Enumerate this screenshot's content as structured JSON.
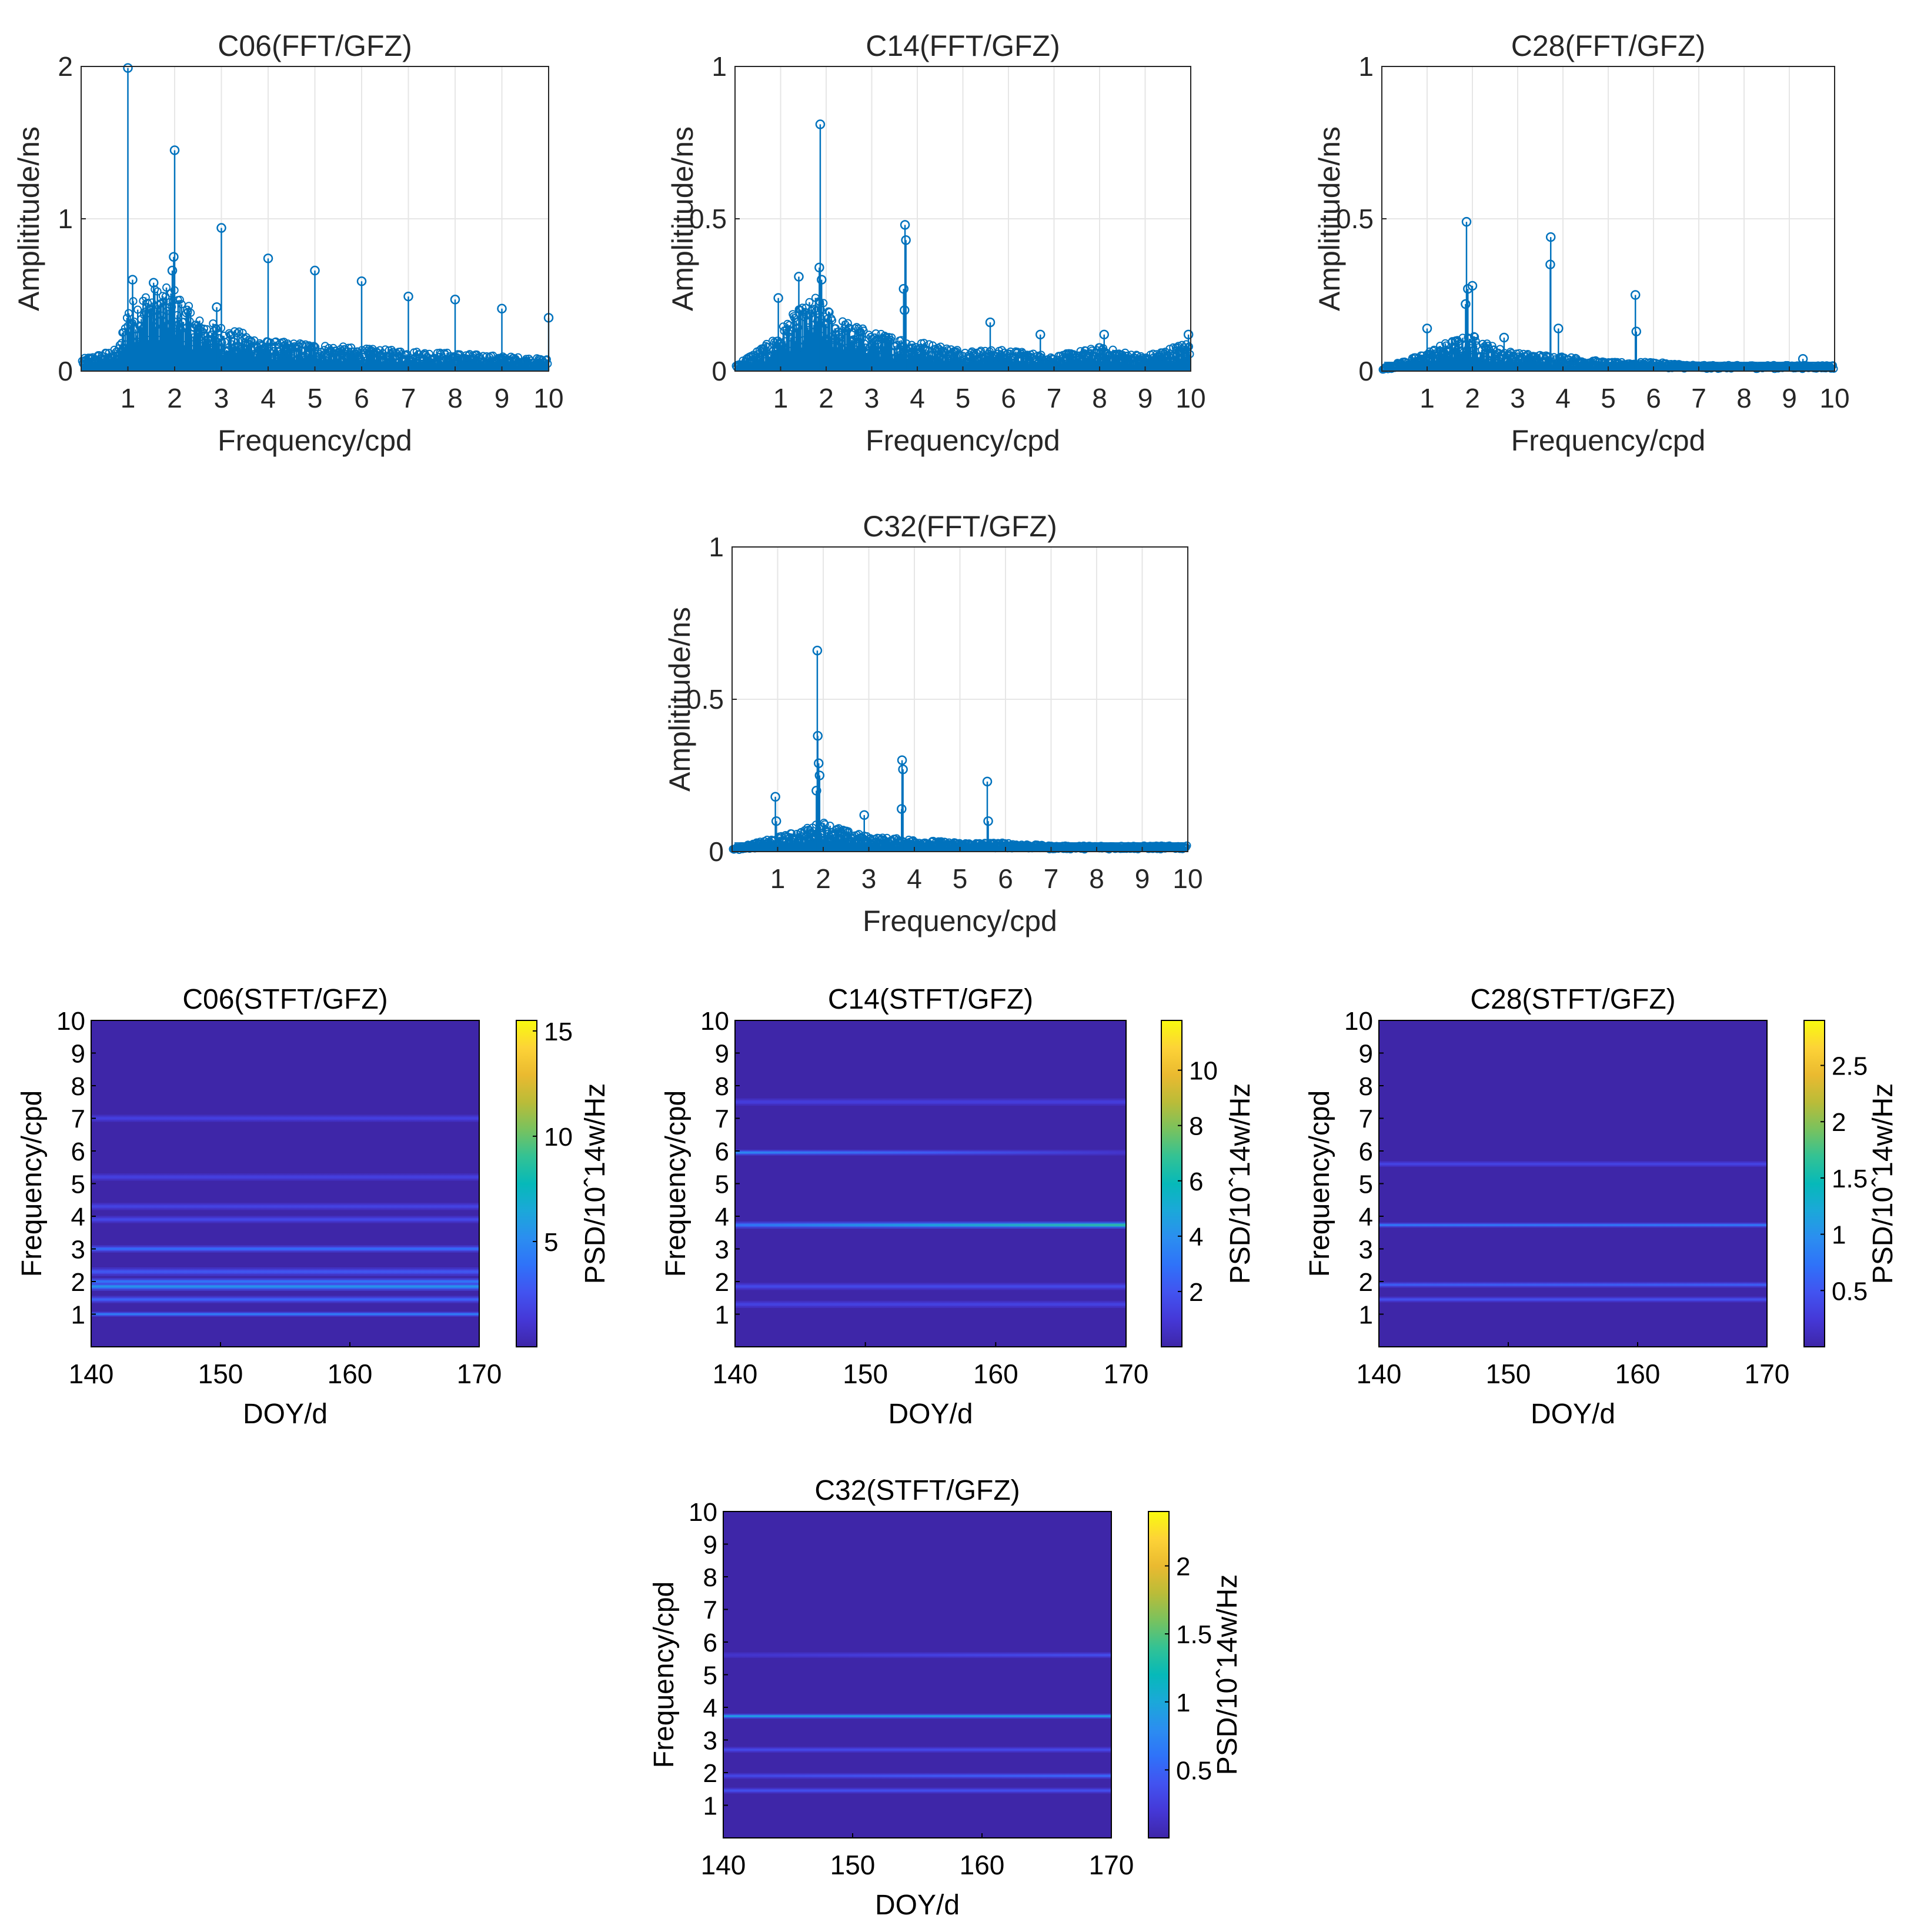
{
  "colors": {
    "stem": "#0072BD",
    "axis_fft": "#262626",
    "grid": "#e6e6e6",
    "heatmap_bg": "#3e26a8",
    "parula": [
      "#3e26a8",
      "#4538d7",
      "#4253f0",
      "#2f72f9",
      "#2b8ef0",
      "#1ba8d9",
      "#06b9b9",
      "#33c294",
      "#79c25e",
      "#bbbc38",
      "#eaba30",
      "#fdd337",
      "#f9fb0e"
    ]
  },
  "chart_data": [
    {
      "type": "stem",
      "title": "C06(FFT/GFZ)",
      "xlabel": "Frequency/cpd",
      "ylabel": "Amplititude/ns",
      "xlim": [
        0,
        10
      ],
      "ylim": [
        0,
        2
      ],
      "xticks": [
        1,
        2,
        3,
        4,
        5,
        6,
        7,
        8,
        9,
        10
      ],
      "yticks": [
        0,
        1,
        2
      ],
      "grid": true,
      "peaks": [
        {
          "f": 1.0,
          "a": 1.99
        },
        {
          "f": 2.0,
          "a": 1.45
        },
        {
          "f": 1.98,
          "a": 0.75
        },
        {
          "f": 1.95,
          "a": 0.66
        },
        {
          "f": 3.0,
          "a": 0.94
        },
        {
          "f": 4.0,
          "a": 0.74
        },
        {
          "f": 5.0,
          "a": 0.66
        },
        {
          "f": 6.0,
          "a": 0.59
        },
        {
          "f": 7.0,
          "a": 0.49
        },
        {
          "f": 8.0,
          "a": 0.47
        },
        {
          "f": 9.0,
          "a": 0.41
        },
        {
          "f": 10.0,
          "a": 0.35
        },
        {
          "f": 1.1,
          "a": 0.6
        },
        {
          "f": 1.55,
          "a": 0.58
        },
        {
          "f": 2.9,
          "a": 0.42
        }
      ],
      "noise_envelope": [
        [
          0,
          0.08
        ],
        [
          0.8,
          0.15
        ],
        [
          1.0,
          0.45
        ],
        [
          1.5,
          0.55
        ],
        [
          2.0,
          0.55
        ],
        [
          2.5,
          0.35
        ],
        [
          3.0,
          0.3
        ],
        [
          4.0,
          0.2
        ],
        [
          5.0,
          0.18
        ],
        [
          6.0,
          0.15
        ],
        [
          8.0,
          0.12
        ],
        [
          10.0,
          0.08
        ]
      ]
    },
    {
      "type": "stem",
      "title": "C14(FFT/GFZ)",
      "xlabel": "Frequency/cpd",
      "ylabel": "Amplititude/ns",
      "xlim": [
        0,
        10
      ],
      "ylim": [
        0,
        1
      ],
      "xticks": [
        1,
        2,
        3,
        4,
        5,
        6,
        7,
        8,
        9,
        10
      ],
      "yticks": [
        0,
        0.5,
        1
      ],
      "grid": true,
      "peaks": [
        {
          "f": 1.87,
          "a": 0.81
        },
        {
          "f": 1.85,
          "a": 0.34
        },
        {
          "f": 1.9,
          "a": 0.3
        },
        {
          "f": 3.73,
          "a": 0.48
        },
        {
          "f": 3.75,
          "a": 0.43
        },
        {
          "f": 3.7,
          "a": 0.27
        },
        {
          "f": 3.72,
          "a": 0.2
        },
        {
          "f": 0.95,
          "a": 0.24
        },
        {
          "f": 1.4,
          "a": 0.31
        },
        {
          "f": 5.6,
          "a": 0.16
        },
        {
          "f": 6.7,
          "a": 0.12
        },
        {
          "f": 8.1,
          "a": 0.12
        },
        {
          "f": 9.95,
          "a": 0.12
        }
      ],
      "noise_envelope": [
        [
          0,
          0.02
        ],
        [
          0.8,
          0.1
        ],
        [
          1.2,
          0.18
        ],
        [
          1.8,
          0.25
        ],
        [
          2.2,
          0.18
        ],
        [
          3.0,
          0.13
        ],
        [
          4.0,
          0.1
        ],
        [
          5.0,
          0.07
        ],
        [
          6.0,
          0.07
        ],
        [
          7.0,
          0.05
        ],
        [
          8.0,
          0.08
        ],
        [
          9.0,
          0.05
        ],
        [
          10.0,
          0.1
        ]
      ]
    },
    {
      "type": "stem",
      "title": "C28(FFT/GFZ)",
      "xlabel": "Frequency/cpd",
      "ylabel": "Amplititude/ns",
      "xlim": [
        0,
        10
      ],
      "ylim": [
        0,
        1
      ],
      "xticks": [
        1,
        2,
        3,
        4,
        5,
        6,
        7,
        8,
        9,
        10
      ],
      "yticks": [
        0,
        0.5,
        1
      ],
      "grid": true,
      "peaks": [
        {
          "f": 1.87,
          "a": 0.49
        },
        {
          "f": 1.9,
          "a": 0.27
        },
        {
          "f": 2.0,
          "a": 0.28
        },
        {
          "f": 1.85,
          "a": 0.22
        },
        {
          "f": 3.73,
          "a": 0.44
        },
        {
          "f": 3.72,
          "a": 0.35
        },
        {
          "f": 3.9,
          "a": 0.14
        },
        {
          "f": 5.6,
          "a": 0.25
        },
        {
          "f": 5.62,
          "a": 0.13
        },
        {
          "f": 1.0,
          "a": 0.14
        },
        {
          "f": 2.7,
          "a": 0.11
        },
        {
          "f": 9.3,
          "a": 0.04
        }
      ],
      "noise_envelope": [
        [
          0,
          0.01
        ],
        [
          0.8,
          0.05
        ],
        [
          1.5,
          0.1
        ],
        [
          2.0,
          0.12
        ],
        [
          2.5,
          0.08
        ],
        [
          3.0,
          0.06
        ],
        [
          4.0,
          0.05
        ],
        [
          5.0,
          0.03
        ],
        [
          6.0,
          0.03
        ],
        [
          7.0,
          0.02
        ],
        [
          10.0,
          0.02
        ]
      ]
    },
    {
      "type": "stem",
      "title": "C32(FFT/GFZ)",
      "xlabel": "Frequency/cpd",
      "ylabel": "Amplititude/ns",
      "xlim": [
        0,
        10
      ],
      "ylim": [
        0,
        1
      ],
      "xticks": [
        1,
        2,
        3,
        4,
        5,
        6,
        7,
        8,
        9,
        10
      ],
      "yticks": [
        0,
        0.5,
        1
      ],
      "grid": true,
      "peaks": [
        {
          "f": 1.87,
          "a": 0.66
        },
        {
          "f": 1.88,
          "a": 0.38
        },
        {
          "f": 1.9,
          "a": 0.29
        },
        {
          "f": 1.92,
          "a": 0.25
        },
        {
          "f": 1.85,
          "a": 0.2
        },
        {
          "f": 3.73,
          "a": 0.3
        },
        {
          "f": 3.75,
          "a": 0.27
        },
        {
          "f": 3.72,
          "a": 0.14
        },
        {
          "f": 5.6,
          "a": 0.23
        },
        {
          "f": 5.62,
          "a": 0.1
        },
        {
          "f": 0.95,
          "a": 0.18
        },
        {
          "f": 0.97,
          "a": 0.1
        },
        {
          "f": 2.9,
          "a": 0.12
        }
      ],
      "noise_envelope": [
        [
          0,
          0.01
        ],
        [
          0.8,
          0.04
        ],
        [
          1.5,
          0.07
        ],
        [
          2.0,
          0.1
        ],
        [
          2.5,
          0.07
        ],
        [
          3.0,
          0.05
        ],
        [
          4.0,
          0.04
        ],
        [
          5.0,
          0.03
        ],
        [
          6.0,
          0.03
        ],
        [
          7.0,
          0.02
        ],
        [
          10.0,
          0.02
        ]
      ]
    },
    {
      "type": "heatmap",
      "title": "C06(STFT/GFZ)",
      "xlabel": "DOY/d",
      "ylabel": "Frequency/cpd",
      "clabel": "PSD/10ˆ14w/Hz",
      "xlim": [
        140,
        170
      ],
      "ylim": [
        0,
        10
      ],
      "xticks": [
        140,
        150,
        160,
        170
      ],
      "yticks": [
        1,
        2,
        3,
        4,
        5,
        6,
        7,
        8,
        9,
        10
      ],
      "clim": [
        0,
        15.5
      ],
      "cticks": [
        5,
        10,
        15
      ],
      "bands": [
        {
          "f": 1.0,
          "v": 4.0,
          "w": 0.07
        },
        {
          "f": 1.45,
          "v": 2.5,
          "w": 0.1
        },
        {
          "f": 1.85,
          "v": 5.0,
          "w": 0.12
        },
        {
          "f": 2.0,
          "v": 3.5,
          "w": 0.1
        },
        {
          "f": 2.3,
          "v": 2.0,
          "w": 0.12
        },
        {
          "f": 3.0,
          "v": 3.0,
          "w": 0.1
        },
        {
          "f": 3.9,
          "v": 1.2,
          "w": 0.1
        },
        {
          "f": 4.3,
          "v": 1.0,
          "w": 0.1
        },
        {
          "f": 5.2,
          "v": 0.8,
          "w": 0.1
        },
        {
          "f": 7.0,
          "v": 0.8,
          "w": 0.1
        }
      ]
    },
    {
      "type": "heatmap",
      "title": "C14(STFT/GFZ)",
      "xlabel": "DOY/d",
      "ylabel": "Frequency/cpd",
      "clabel": "PSD/10ˆ14w/Hz",
      "xlim": [
        140,
        170
      ],
      "ylim": [
        0,
        10
      ],
      "xticks": [
        140,
        150,
        160,
        170
      ],
      "yticks": [
        1,
        2,
        3,
        4,
        5,
        6,
        7,
        8,
        9,
        10
      ],
      "clim": [
        0,
        11.8
      ],
      "cticks": [
        2,
        4,
        6,
        8,
        10
      ],
      "bands": [
        {
          "f": 3.73,
          "v": 6.5,
          "w": 0.1,
          "ramp": [
            0.4,
            1.0
          ]
        },
        {
          "f": 5.95,
          "v": 3.5,
          "w": 0.08,
          "ramp": [
            1.0,
            0.0
          ]
        },
        {
          "f": 1.85,
          "v": 1.0,
          "w": 0.1
        },
        {
          "f": 1.3,
          "v": 0.7,
          "w": 0.1
        },
        {
          "f": 7.5,
          "v": 0.5,
          "w": 0.1
        }
      ]
    },
    {
      "type": "heatmap",
      "title": "C28(STFT/GFZ)",
      "xlabel": "DOY/d",
      "ylabel": "Frequency/cpd",
      "clabel": "PSD/10ˆ14w/Hz",
      "xlim": [
        140,
        170
      ],
      "ylim": [
        0,
        10
      ],
      "xticks": [
        140,
        150,
        160,
        170
      ],
      "yticks": [
        1,
        2,
        3,
        4,
        5,
        6,
        7,
        8,
        9,
        10
      ],
      "clim": [
        0,
        2.9
      ],
      "cticks": [
        0.5,
        1,
        1.5,
        2,
        2.5
      ],
      "bands": [
        {
          "f": 3.73,
          "v": 0.7,
          "w": 0.07
        },
        {
          "f": 1.9,
          "v": 0.45,
          "w": 0.08
        },
        {
          "f": 1.45,
          "v": 0.3,
          "w": 0.08
        },
        {
          "f": 5.6,
          "v": 0.2,
          "w": 0.08
        }
      ]
    },
    {
      "type": "heatmap",
      "title": "C32(STFT/GFZ)",
      "xlabel": "DOY/d",
      "ylabel": "Frequency/cpd",
      "clabel": "PSD/10ˆ14w/Hz",
      "xlim": [
        140,
        170
      ],
      "ylim": [
        0,
        10
      ],
      "xticks": [
        140,
        150,
        160,
        170
      ],
      "yticks": [
        1,
        2,
        3,
        4,
        5,
        6,
        7,
        8,
        9,
        10
      ],
      "clim": [
        0,
        2.4
      ],
      "cticks": [
        0.5,
        1,
        1.5,
        2
      ],
      "bands": [
        {
          "f": 3.73,
          "v": 0.9,
          "w": 0.07
        },
        {
          "f": 1.9,
          "v": 0.45,
          "w": 0.08,
          "ramp": [
            0.4,
            1.0
          ]
        },
        {
          "f": 1.45,
          "v": 0.25,
          "w": 0.08
        },
        {
          "f": 5.6,
          "v": 0.25,
          "w": 0.08,
          "ramp": [
            0.0,
            1.0
          ]
        },
        {
          "f": 2.7,
          "v": 0.2,
          "w": 0.08
        }
      ]
    }
  ]
}
